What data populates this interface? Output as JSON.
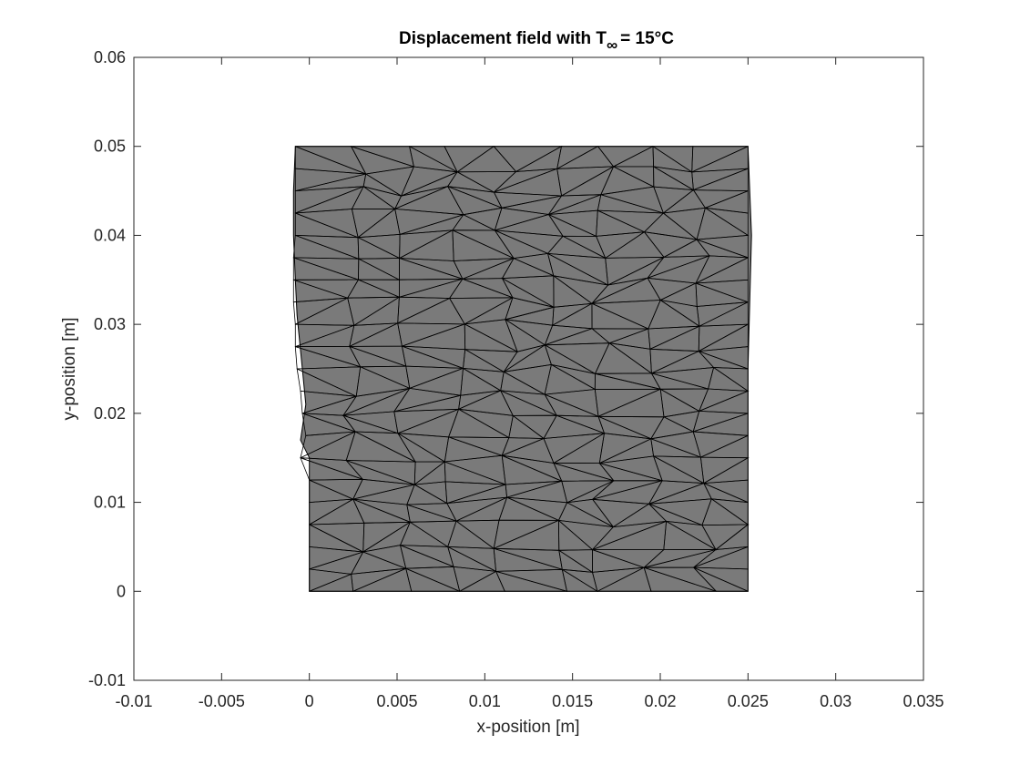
{
  "chart_data": {
    "type": "mesh",
    "title": {
      "prefix": "Displacement field with T",
      "subscript": "∞",
      "suffix": "= 15°C"
    },
    "xlabel": "x-position [m]",
    "ylabel": "y-position [m]",
    "xlim": [
      -0.01,
      0.035
    ],
    "ylim": [
      -0.01,
      0.06
    ],
    "xticks": [
      -0.01,
      -0.005,
      0,
      0.005,
      0.01,
      0.015,
      0.02,
      0.025,
      0.03,
      0.035
    ],
    "xtick_labels": [
      "-0.01",
      "-0.005",
      "0",
      "0.005",
      "0.01",
      "0.015",
      "0.02",
      "0.025",
      "0.03",
      "0.035"
    ],
    "yticks": [
      -0.01,
      0,
      0.01,
      0.02,
      0.03,
      0.04,
      0.05,
      0.06
    ],
    "ytick_labels": [
      "-0.01",
      "0",
      "0.01",
      "0.02",
      "0.03",
      "0.04",
      "0.05",
      "0.06"
    ],
    "grid": false,
    "colors": {
      "undeformed_fill": "#bdbdbd",
      "deformed_fill": "#7a7a7a",
      "mesh_edges": "#000000",
      "axes": "#262626"
    },
    "undeformed_region": [
      [
        0,
        0
      ],
      [
        0.025,
        0
      ],
      [
        0.025,
        0.05
      ],
      [
        0,
        0.05
      ]
    ],
    "deformed_outline": [
      [
        0,
        0
      ],
      [
        0.025,
        0
      ],
      [
        0.025,
        0.025
      ],
      [
        0.0252,
        0.04
      ],
      [
        0.025,
        0.05
      ],
      [
        -0.0008,
        0.05
      ],
      [
        -0.0009,
        0.045
      ],
      [
        -0.0009,
        0.04
      ],
      [
        -0.0008,
        0.035
      ],
      [
        -0.0007,
        0.031
      ],
      [
        -0.0004,
        0.025
      ],
      [
        -0.0002,
        0.021
      ],
      [
        -0.0005,
        0.017
      ],
      [
        0,
        0.015
      ]
    ],
    "mesh_columns_x": [
      0,
      0.0026,
      0.0055,
      0.0083,
      0.0112,
      0.014,
      0.0168,
      0.0197,
      0.0225,
      0.025
    ],
    "mesh_rows_y": [
      0,
      0.0025,
      0.005,
      0.0075,
      0.01,
      0.0125,
      0.015,
      0.0175,
      0.02,
      0.0225,
      0.025,
      0.0275,
      0.03,
      0.0325,
      0.035,
      0.0375,
      0.04,
      0.0425,
      0.045,
      0.0475,
      0.05
    ],
    "upper_region_y_from": 0.015,
    "left_edge_displaced_x": [
      -0.0005,
      -0.0002,
      -0.0004,
      -0.0005,
      -0.0007,
      -0.0008,
      -0.0008,
      -0.0009,
      -0.0009,
      -0.0009,
      -0.0008,
      -0.0008,
      -0.0008,
      -0.0008,
      -0.0008
    ]
  }
}
